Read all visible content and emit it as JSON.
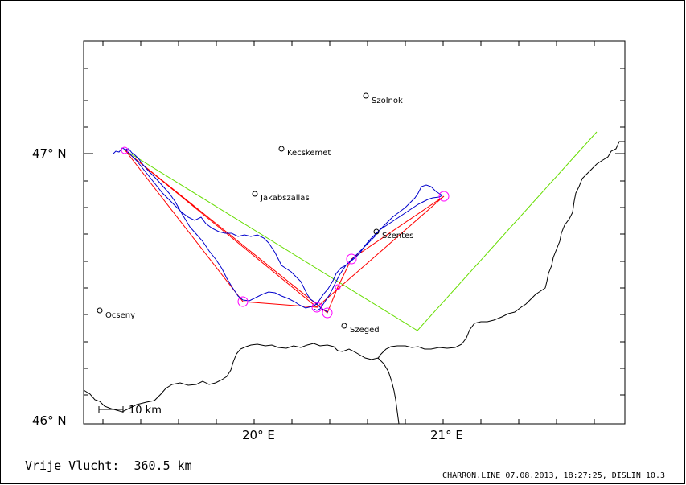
{
  "axes": {
    "y_labels": [
      "47° N",
      "46° N"
    ],
    "x_labels": [
      "20° E",
      "21° E"
    ]
  },
  "cities": [
    {
      "id": "szolnok",
      "name": "Szolnok"
    },
    {
      "id": "kecskemet",
      "name": "Kecskemet"
    },
    {
      "id": "jakabszallas",
      "name": "Jakabszallas"
    },
    {
      "id": "szentes",
      "name": "Szentes"
    },
    {
      "id": "ocseny",
      "name": "Ocseny"
    },
    {
      "id": "szeged",
      "name": "Szeged"
    }
  ],
  "scale_bar": {
    "label": "10 km"
  },
  "footer": {
    "flight_label": "Vrije Vlucht:",
    "distance": "360.5 km",
    "info": "CHARRON.LINE 07.08.2013, 18:27:25, DISLIN 10.3"
  },
  "colors": {
    "track": "#0000cc",
    "task": "#ff0000",
    "green_line": "#66dd00",
    "turnpoint": "#ff00ff",
    "border": "#000000"
  }
}
